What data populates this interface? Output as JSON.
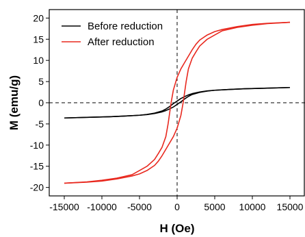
{
  "chart_data": {
    "type": "line",
    "xlabel": "H (Oe)",
    "ylabel": "M (emu/g)",
    "xlim": [
      -17000,
      17000
    ],
    "ylim": [
      -22,
      22
    ],
    "x_ticks": [
      -15000,
      -10000,
      -5000,
      0,
      5000,
      10000,
      15000
    ],
    "y_ticks": [
      -20,
      -15,
      -10,
      -5,
      0,
      5,
      10,
      15,
      20
    ],
    "reference_lines": {
      "x": 0,
      "y": 0,
      "style": "dashed"
    },
    "legend_position": "top-left",
    "series": [
      {
        "name": "Before reduction",
        "color": "#000000",
        "branches": [
          {
            "x": [
              15000,
              12000,
              9000,
              7000,
              5000,
              4000,
              3000,
              2000,
              1500,
              1000,
              500,
              0,
              -500,
              -1000,
              -1500,
              -2000,
              -3000,
              -4000,
              -5000,
              -7000,
              -9000,
              -12000,
              -15000
            ],
            "y": [
              3.6,
              3.45,
              3.3,
              3.15,
              2.95,
              2.8,
              2.55,
              2.15,
              1.85,
              1.45,
              1.0,
              0.4,
              -0.2,
              -0.9,
              -1.5,
              -1.95,
              -2.45,
              -2.75,
              -2.95,
              -3.15,
              -3.3,
              -3.45,
              -3.6
            ]
          },
          {
            "x": [
              -15000,
              -12000,
              -9000,
              -7000,
              -5000,
              -4000,
              -3000,
              -2000,
              -1500,
              -1000,
              -500,
              0,
              500,
              1000,
              1500,
              2000,
              3000,
              4000,
              5000,
              7000,
              9000,
              12000,
              15000
            ],
            "y": [
              -3.6,
              -3.45,
              -3.3,
              -3.15,
              -2.95,
              -2.8,
              -2.55,
              -2.15,
              -1.85,
              -1.45,
              -1.0,
              -0.4,
              0.2,
              0.9,
              1.5,
              1.95,
              2.45,
              2.75,
              2.95,
              3.15,
              3.3,
              3.45,
              3.6
            ]
          }
        ]
      },
      {
        "name": "After reduction",
        "color": "#e8281e",
        "branches": [
          {
            "x": [
              15000,
              12000,
              10000,
              8000,
              6000,
              5000,
              4000,
              3000,
              2500,
              2000,
              1500,
              1000,
              500,
              0,
              -500,
              -800,
              -1000,
              -1200,
              -1500,
              -2000,
              -2500,
              -3000,
              -4000,
              -5000,
              -6000,
              -8000,
              -10000,
              -12000,
              -15000
            ],
            "y": [
              19.0,
              18.75,
              18.5,
              18.0,
              17.3,
              16.8,
              16.0,
              14.8,
              13.8,
              12.5,
              11.0,
              9.5,
              8.0,
              6.0,
              3.0,
              0.0,
              -2.5,
              -5.0,
              -8.0,
              -10.5,
              -12.0,
              -13.4,
              -15.0,
              -16.0,
              -17.0,
              -17.8,
              -18.3,
              -18.7,
              -19.0
            ]
          },
          {
            "x": [
              -15000,
              -12000,
              -10000,
              -8000,
              -6000,
              -5000,
              -4000,
              -3000,
              -2500,
              -2000,
              -1500,
              -1000,
              -500,
              0,
              500,
              800,
              1000,
              1200,
              1500,
              2000,
              2500,
              3000,
              4000,
              5000,
              6000,
              8000,
              10000,
              12000,
              15000
            ],
            "y": [
              -19.0,
              -18.75,
              -18.5,
              -18.0,
              -17.3,
              -16.8,
              -16.0,
              -14.8,
              -13.8,
              -12.5,
              -11.0,
              -9.5,
              -8.0,
              -6.0,
              -3.0,
              0.0,
              2.5,
              5.0,
              8.0,
              10.5,
              12.0,
              13.4,
              15.0,
              16.0,
              17.0,
              17.8,
              18.3,
              18.7,
              19.0
            ]
          }
        ]
      }
    ]
  }
}
